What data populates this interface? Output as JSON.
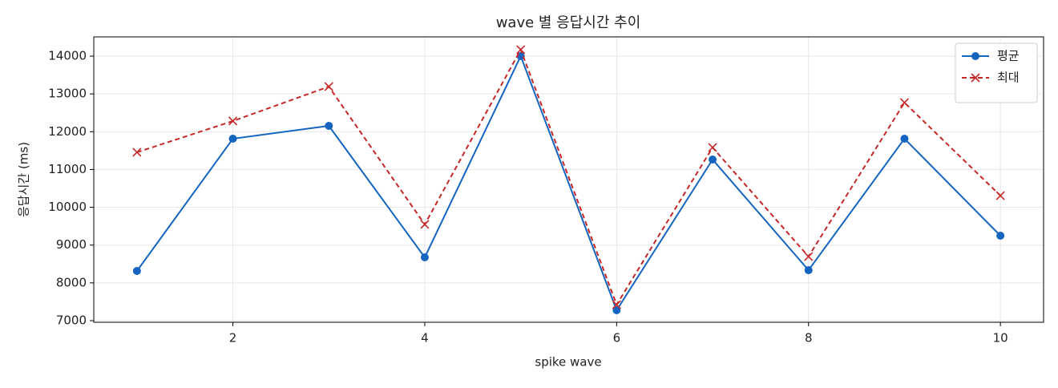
{
  "chart_data": {
    "type": "line",
    "title": "wave 별 응답시간 추이",
    "xlabel": "spike wave",
    "ylabel": "응답시간 (ms)",
    "x": [
      1,
      2,
      3,
      4,
      5,
      6,
      7,
      8,
      9,
      10
    ],
    "series": [
      {
        "name": "평균",
        "color": "#1565c0",
        "marker": "o",
        "dash": false,
        "values": [
          8315,
          11815,
          12155,
          8676,
          14000,
          7276,
          11264,
          8336,
          11815,
          9249
        ]
      },
      {
        "name": "최대",
        "color": "#c62828",
        "marker": "x",
        "dash": true,
        "values": [
          11455,
          12282,
          13194,
          9546,
          14170,
          7424,
          11582,
          8697,
          12770,
          10309
        ]
      }
    ],
    "xlim": [
      0.55,
      10.45
    ],
    "ylim": [
      6958,
      14509
    ],
    "xticks": [
      2,
      4,
      6,
      8,
      10
    ],
    "yticks": [
      7000,
      8000,
      9000,
      10000,
      11000,
      12000,
      13000,
      14000
    ],
    "grid": true,
    "legend": "upper right"
  }
}
